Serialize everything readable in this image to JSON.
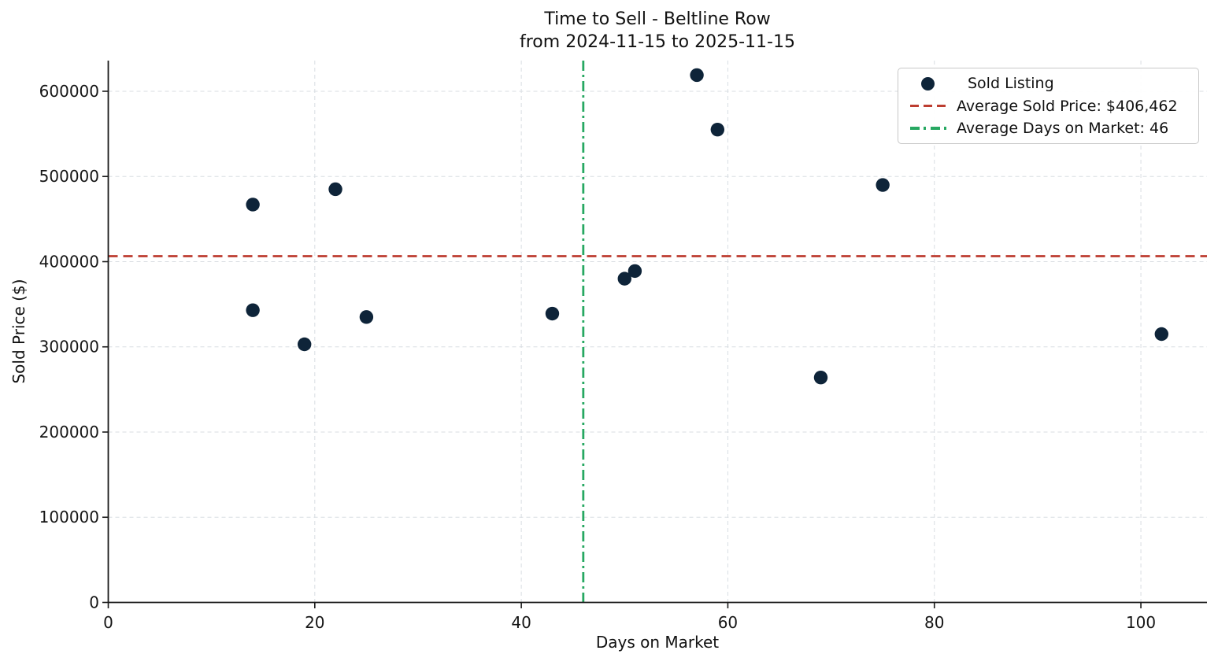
{
  "chart_data": {
    "type": "scatter",
    "title": "Time to Sell - Beltline Row",
    "subtitle": "from 2024-11-15 to 2025-11-15",
    "xlabel": "Days on Market",
    "ylabel": "Sold Price ($)",
    "xlim": [
      0,
      106.4
    ],
    "ylim": [
      0,
      636000
    ],
    "xticks": [
      0,
      20,
      40,
      60,
      80,
      100
    ],
    "yticks": [
      0,
      100000,
      200000,
      300000,
      400000,
      500000,
      600000
    ],
    "grid": true,
    "legend_position": "upper-right",
    "series": [
      {
        "name": "Sold Listing",
        "marker": "circle",
        "color": "#0e2439",
        "points": [
          [
            14,
            467000
          ],
          [
            14,
            343000
          ],
          [
            19,
            303000
          ],
          [
            22,
            485000
          ],
          [
            25,
            335000
          ],
          [
            43,
            339000
          ],
          [
            50,
            380000
          ],
          [
            51,
            389000
          ],
          [
            57,
            619000
          ],
          [
            59,
            555000
          ],
          [
            69,
            264000
          ],
          [
            75,
            490000
          ],
          [
            102,
            315000
          ]
        ]
      }
    ],
    "reference_lines": [
      {
        "label": "Average Sold Price: $406,462",
        "orientation": "horizontal",
        "value": 406462,
        "color": "#bd3d30",
        "style": "dashed"
      },
      {
        "label": "Average Days on Market: 46",
        "orientation": "vertical",
        "value": 46,
        "color": "#27a862",
        "style": "dashdot"
      }
    ]
  },
  "colors": {
    "background": "#ffffff",
    "grid": "#d8dde2",
    "axis": "#1a1a1a",
    "text": "#151515"
  }
}
